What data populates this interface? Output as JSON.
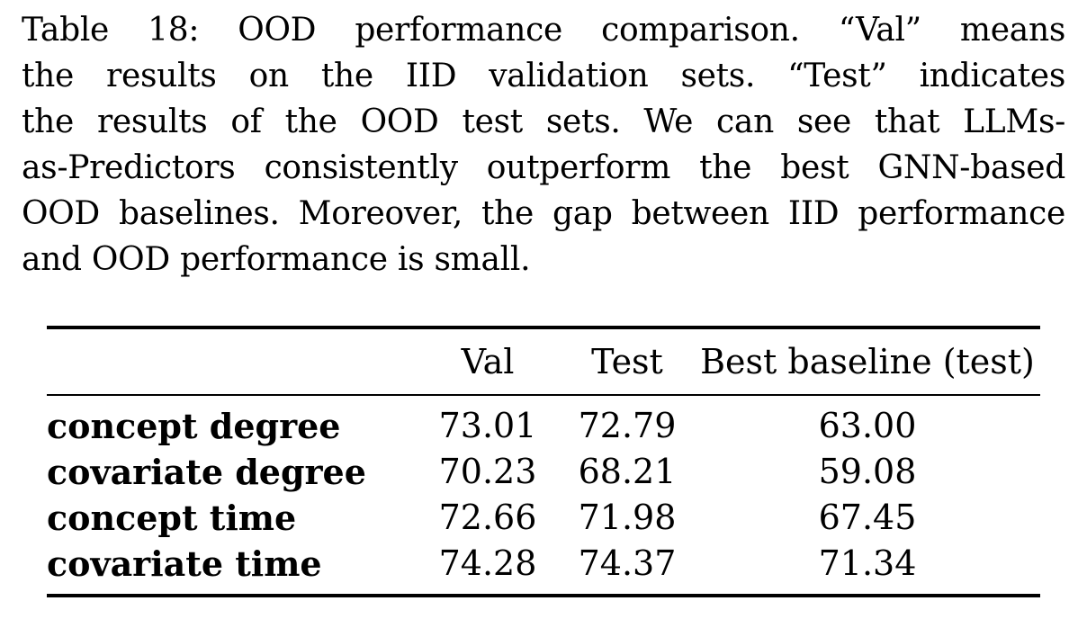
{
  "caption": {
    "lines": [
      "Table 18:  OOD performance comparison.  “Val” means",
      "the results on the IID validation sets.  “Test” indicates",
      "the results of the OOD test sets.  We can see that LLMs-",
      "as-Predictors consistently outperform the best GNN-based",
      "OOD baselines. Moreover, the gap between IID performance",
      "and OOD performance is small."
    ]
  },
  "table": {
    "headers": [
      "",
      "Val",
      "Test",
      "Best baseline (test)"
    ],
    "rows": [
      {
        "label": "concept degree",
        "val": "73.01",
        "test": "72.79",
        "best": "63.00"
      },
      {
        "label": "covariate degree",
        "val": "70.23",
        "test": "68.21",
        "best": "59.08"
      },
      {
        "label": "concept time",
        "val": "72.66",
        "test": "71.98",
        "best": "67.45"
      },
      {
        "label": "covariate time",
        "val": "74.28",
        "test": "74.37",
        "best": "71.34"
      }
    ]
  }
}
